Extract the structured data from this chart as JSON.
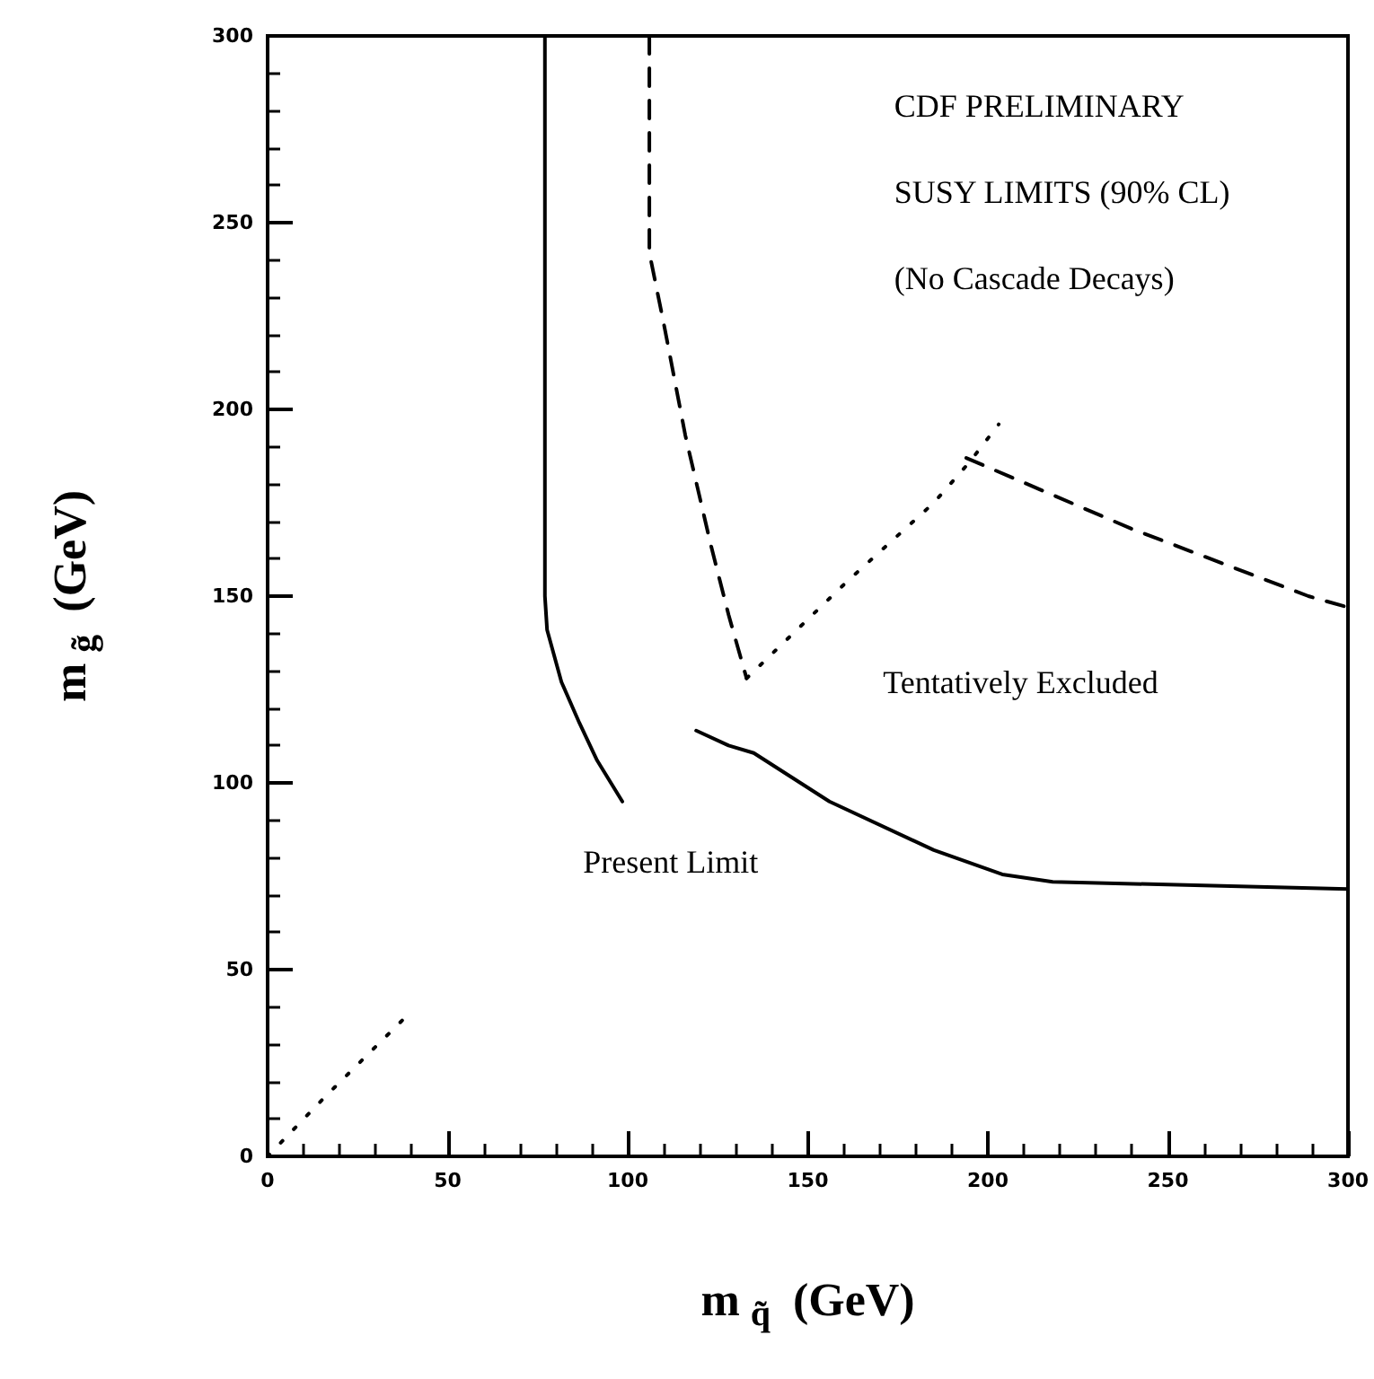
{
  "chart_data": {
    "type": "line",
    "xlabel": "m$_{q̃}$ (GeV)",
    "ylabel": "m$_{g̃}$ (GeV)",
    "xlim": [
      0,
      300
    ],
    "ylim": [
      0,
      300
    ],
    "xticks": [
      0,
      50,
      100,
      150,
      200,
      250,
      300
    ],
    "yticks": [
      0,
      50,
      100,
      150,
      200,
      250,
      300
    ],
    "grid": false,
    "marker": "none",
    "series": [
      {
        "color": "#000000",
        "line_style": "solid",
        "x": [
          77,
          77,
          77.6,
          81.6,
          86.6,
          91.5,
          98.5
        ],
        "values": [
          300,
          150,
          141,
          127,
          116,
          106,
          95
        ]
      },
      {
        "color": "#000000",
        "line_style": "solid",
        "x": [
          119,
          128,
          135,
          156,
          185,
          204,
          218,
          300
        ],
        "values": [
          114,
          110,
          108,
          95,
          82,
          75.5,
          73.5,
          71.6
        ]
      },
      {
        "color": "#000000",
        "line_style": "dashed",
        "x": [
          106,
          106,
          110,
          116,
          123,
          128,
          133
        ],
        "values": [
          300,
          242,
          223,
          193,
          164,
          145,
          128
        ]
      },
      {
        "color": "#000000",
        "line_style": "dashed",
        "x": [
          194,
          240,
          289,
          300
        ],
        "values": [
          187,
          168,
          150,
          147
        ]
      },
      {
        "color": "#000000",
        "line_style": "dotted",
        "x": [
          133,
          161,
          185,
          195,
          203
        ],
        "values": [
          128,
          154,
          175,
          186,
          196
        ]
      },
      {
        "color": "#000000",
        "line_style": "dotted",
        "x": [
          0,
          16,
          38
        ],
        "values": [
          0,
          16,
          37
        ]
      }
    ],
    "annotations": [
      "CDF PRELIMINARY",
      "SUSY LIMITS (90% CL)",
      "(No Cascade Decays)",
      "Tentatively Excluded",
      "Present Limit"
    ]
  }
}
